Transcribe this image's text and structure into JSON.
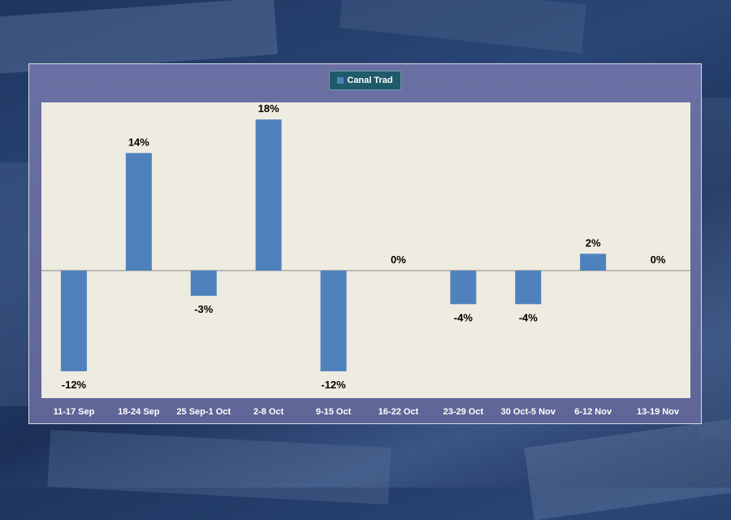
{
  "chart_data": {
    "type": "bar",
    "legend": [
      "Canal Trad"
    ],
    "categories": [
      "11-17 Sep",
      "18-24 Sep",
      "25 Sep-1 Oct",
      "2-8 Oct",
      "9-15 Oct",
      "16-22 Oct",
      "23-29 Oct",
      "30 Oct-5 Nov",
      "6-12 Nov",
      "13-19 Nov"
    ],
    "series": [
      {
        "name": "Canal Trad",
        "values": [
          -12,
          14,
          -3,
          18,
          -12,
          0,
          -4,
          -4,
          2,
          0
        ]
      }
    ],
    "data_labels": [
      "-12%",
      "14%",
      "-3%",
      "18%",
      "-12%",
      "0%",
      "-4%",
      "-4%",
      "2%",
      "0%"
    ],
    "ylim": [
      -15,
      20
    ],
    "unit": "%",
    "bar_color": "#4f81bd"
  }
}
